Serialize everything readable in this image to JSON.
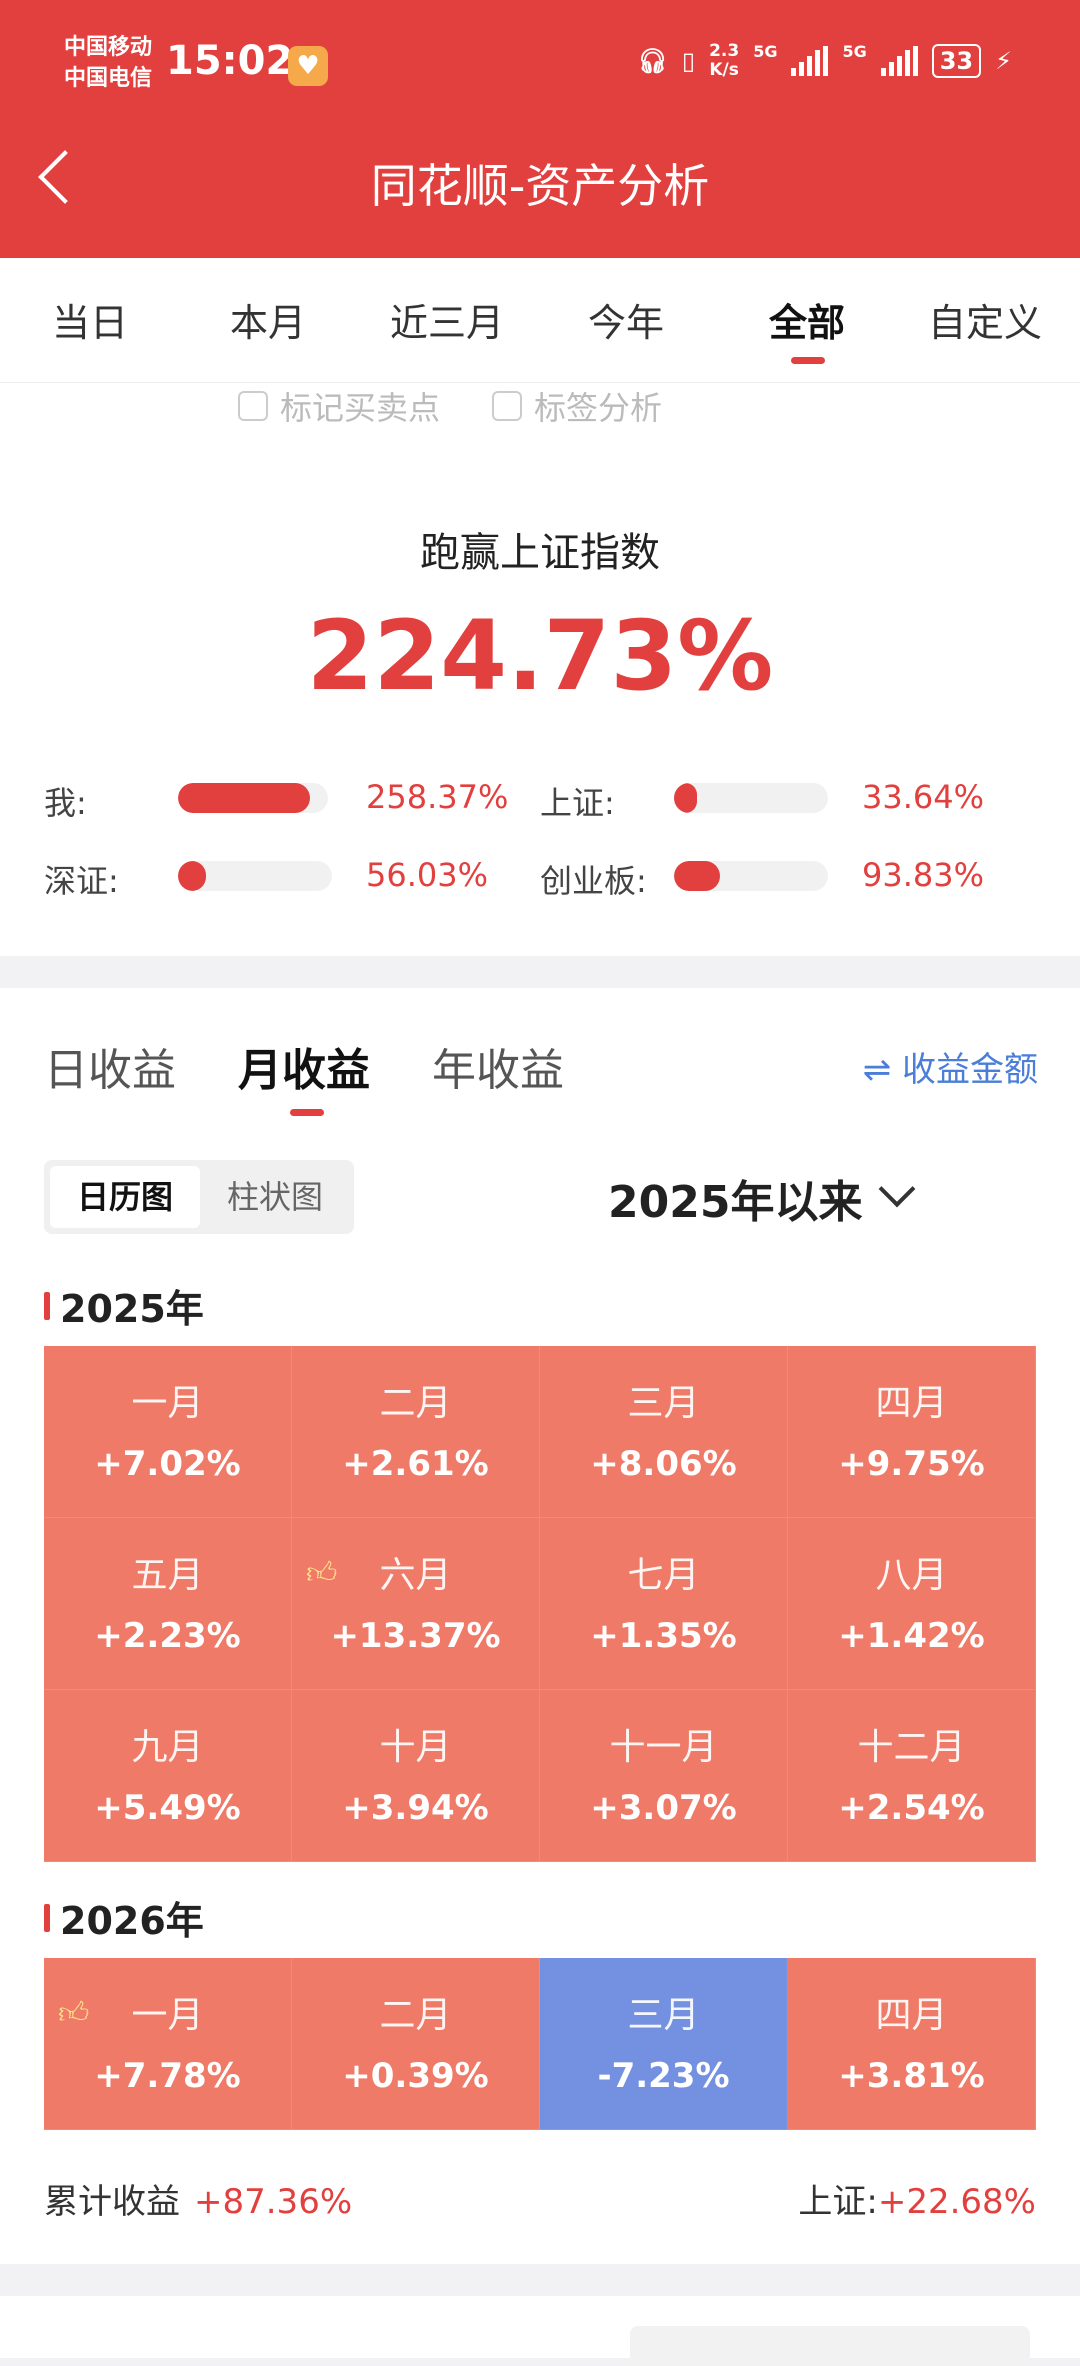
{
  "status_bar": {
    "carrier1": "中国移动",
    "carrier2": "中国电信",
    "time": "15:02",
    "net_speed_top": "2.3",
    "net_speed_bottom": "K/s",
    "net1": "5G",
    "net2": "5G",
    "battery": "33"
  },
  "header": {
    "title": "同花顺-资产分析"
  },
  "period_tabs": [
    "当日",
    "本月",
    "近三月",
    "今年",
    "全部",
    "自定义"
  ],
  "active_period_tab": "全部",
  "options": {
    "mark_trades": "标记买卖点",
    "tag_analysis": "标签分析"
  },
  "beat": {
    "label": "跑赢上证指数",
    "value": "224.73%"
  },
  "comparison": [
    {
      "label": "我:",
      "value": "258.37%",
      "fill": 0.88
    },
    {
      "label": "上证:",
      "value": "33.64%",
      "fill": 0.15
    },
    {
      "label": "深证:",
      "value": "56.03%",
      "fill": 0.18
    },
    {
      "label": "创业板:",
      "value": "93.83%",
      "fill": 0.3
    }
  ],
  "profit_tabs": [
    "日收益",
    "月收益",
    "年收益"
  ],
  "active_profit_tab": "月收益",
  "amount_toggle": "⇌ 收益金额",
  "view_toggle": {
    "calendar": "日历图",
    "bar": "柱状图"
  },
  "range": "2025年以来",
  "year_2025": {
    "label": "2025年",
    "months": [
      {
        "m": "一月",
        "v": "+7.02%"
      },
      {
        "m": "二月",
        "v": "+2.61%"
      },
      {
        "m": "三月",
        "v": "+8.06%"
      },
      {
        "m": "四月",
        "v": "+9.75%"
      },
      {
        "m": "五月",
        "v": "+2.23%"
      },
      {
        "m": "六月",
        "v": "+13.37%"
      },
      {
        "m": "七月",
        "v": "+1.35%"
      },
      {
        "m": "八月",
        "v": "+1.42%"
      },
      {
        "m": "九月",
        "v": "+5.49%"
      },
      {
        "m": "十月",
        "v": "+3.94%"
      },
      {
        "m": "十一月",
        "v": "+3.07%"
      },
      {
        "m": "十二月",
        "v": "+2.54%"
      }
    ]
  },
  "year_2026": {
    "label": "2026年",
    "months": [
      {
        "m": "一月",
        "v": "+7.78%"
      },
      {
        "m": "二月",
        "v": "+0.39%"
      },
      {
        "m": "三月",
        "v": "-7.23%"
      },
      {
        "m": "四月",
        "v": "+3.81%"
      }
    ]
  },
  "footer": {
    "cum_label": "累计收益",
    "cum_value": "+87.36%",
    "sh_label": "上证:",
    "sh_value": "+22.68%"
  },
  "colors": {
    "brand": "#e2403e",
    "positive_cell": "#ee7a67",
    "negative_cell": "#7490e0",
    "link": "#4a7ed8"
  },
  "icons": {
    "back": "chevron-left-icon",
    "thumb": "thumbs-up-icon",
    "dropdown": "chevron-down-icon"
  }
}
